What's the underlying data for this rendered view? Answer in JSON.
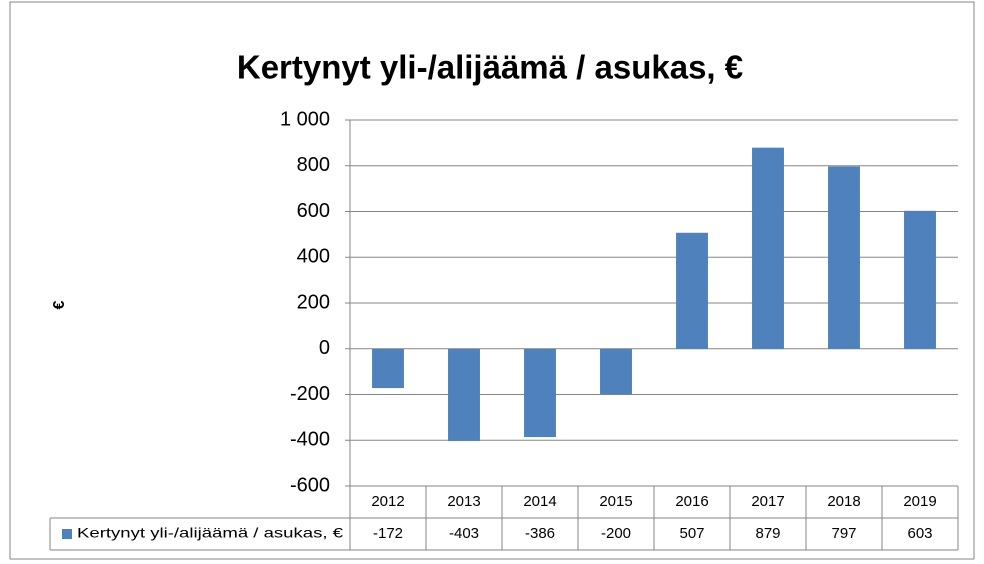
{
  "chart_data": {
    "type": "bar",
    "title": "Kertynyt yli-/alijäämä / asukas, €",
    "ylabel": "€",
    "categories": [
      "2012",
      "2013",
      "2014",
      "2015",
      "2016",
      "2017",
      "2018",
      "2019"
    ],
    "series": [
      {
        "name": "Kertynyt yli-/alijäämä / asukas, €",
        "color": "#4f81bd",
        "values": [
          -172,
          -403,
          -386,
          -200,
          507,
          879,
          797,
          603
        ]
      }
    ],
    "ylim": [
      -600,
      1000
    ],
    "yticks": [
      -600,
      -400,
      -200,
      0,
      200,
      400,
      600,
      800,
      {
        "value": 1000,
        "label": "1 000"
      }
    ],
    "grid": true,
    "data_table": true
  }
}
